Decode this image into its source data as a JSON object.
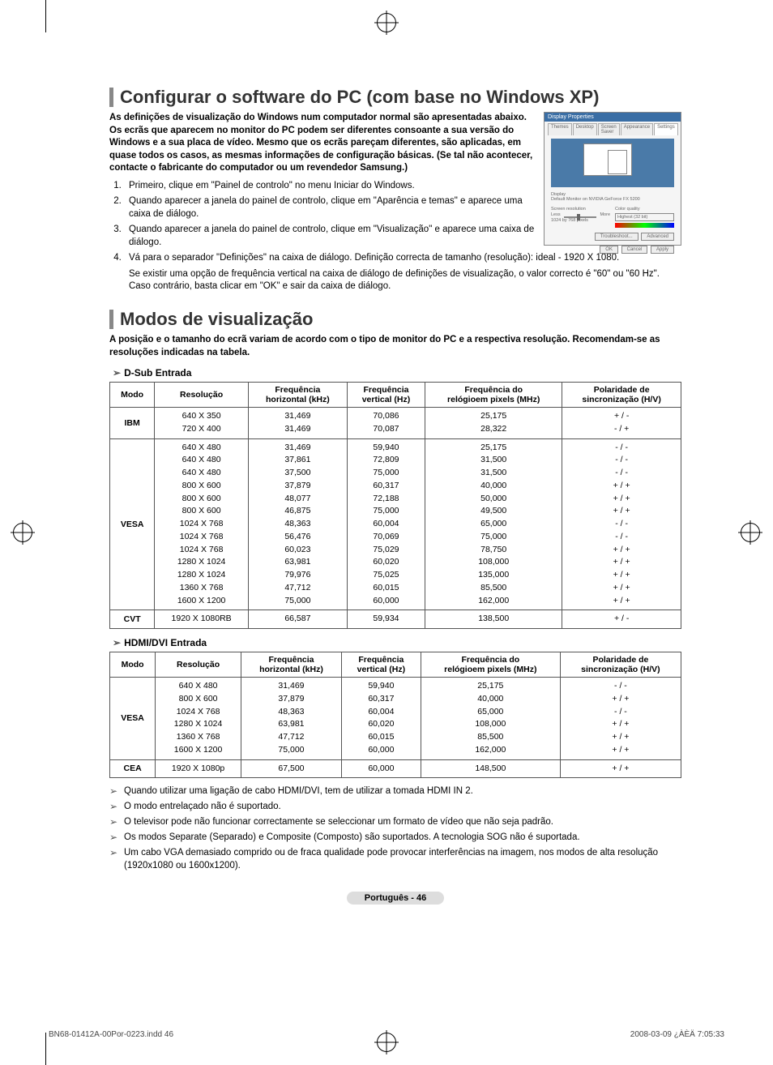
{
  "crop_marks": true,
  "section1": {
    "title": "Configurar o software do PC (com base no Windows XP)",
    "intro": "As definições de visualização do Windows num computador normal são apresentadas abaixo. Os ecrãs que aparecem no monitor do PC podem ser diferentes consoante a sua versão do Windows e a sua placa de vídeo. Mesmo que os ecrãs pareçam diferentes, são aplicadas, em quase todos os casos, as mesmas informações de configuração básicas. (Se tal não acontecer, contacte o fabricante do computador ou um revendedor Samsung.)",
    "steps": [
      "Primeiro, clique em \"Painel de controlo\" no menu Iniciar do Windows.",
      "Quando aparecer a janela do painel de controlo, clique em \"Aparência e temas\" e aparece uma caixa de diálogo.",
      "Quando aparecer a janela do painel de controlo, clique em \"Visualização\" e aparece uma caixa de diálogo.",
      "Vá para o separador \"Definições\" na caixa de diálogo. Definição correcta de tamanho (resolução): ideal - 1920 X 1080."
    ],
    "sub_note": "Se existir uma opção de frequência vertical na caixa de diálogo de definições de visualização, o valor correcto é \"60\" ou \"60 Hz\". Caso contrário, basta clicar em \"OK\" e sair da caixa de diálogo.",
    "dialog_title": "Display Properties",
    "dialog_tabs": [
      "Themes",
      "Desktop",
      "Screen Saver",
      "Appearance",
      "Settings"
    ],
    "dialog_left_label": "Screen resolution",
    "dialog_right_label": "Color quality",
    "dialog_res": "1024 by 768 pixels",
    "dialog_btns": [
      "Troubleshoot...",
      "Advanced"
    ],
    "dialog_ok": [
      "OK",
      "Cancel",
      "Apply"
    ]
  },
  "section2": {
    "title": "Modos de visualização",
    "intro": "A posição e o tamanho do ecrã variam de acordo com o tipo de monitor do PC e a respectiva resolução. Recomendam-se as resoluções indicadas na tabela."
  },
  "tableA": {
    "heading": "D-Sub Entrada",
    "cols": [
      "Modo",
      "Resolução",
      "Frequência horizontal (kHz)",
      "Frequência vertical (Hz)",
      "Frequência do relógioem pixels (MHz)",
      "Polaridade de sincronização (H/V)"
    ],
    "rows": [
      {
        "mode": "IBM",
        "res": [
          "640 X 350",
          "720 X 400"
        ],
        "h": [
          "31,469",
          "31,469"
        ],
        "v": [
          "70,086",
          "70,087"
        ],
        "p": [
          "25,175",
          "28,322"
        ],
        "s": [
          "+ / -",
          "- / +"
        ]
      },
      {
        "mode": "VESA",
        "res": [
          "640 X 480",
          "640 X 480",
          "640 X 480",
          "800 X 600",
          "800 X 600",
          "800 X 600",
          "1024 X 768",
          "1024 X 768",
          "1024 X 768",
          "1280 X 1024",
          "1280 X 1024",
          "1360 X 768",
          "1600 X 1200"
        ],
        "h": [
          "31,469",
          "37,861",
          "37,500",
          "37,879",
          "48,077",
          "46,875",
          "48,363",
          "56,476",
          "60,023",
          "63,981",
          "79,976",
          "47,712",
          "75,000"
        ],
        "v": [
          "59,940",
          "72,809",
          "75,000",
          "60,317",
          "72,188",
          "75,000",
          "60,004",
          "70,069",
          "75,029",
          "60,020",
          "75,025",
          "60,015",
          "60,000"
        ],
        "p": [
          "25,175",
          "31,500",
          "31,500",
          "40,000",
          "50,000",
          "49,500",
          "65,000",
          "75,000",
          "78,750",
          "108,000",
          "135,000",
          "85,500",
          "162,000"
        ],
        "s": [
          "- / -",
          "- / -",
          "- / -",
          "+ / +",
          "+ / +",
          "+ / +",
          "- / -",
          "- / -",
          "+ / +",
          "+ / +",
          "+ / +",
          "+ / +",
          "+ / +"
        ]
      },
      {
        "mode": "CVT",
        "res": [
          "1920 X 1080RB"
        ],
        "h": [
          "66,587"
        ],
        "v": [
          "59,934"
        ],
        "p": [
          "138,500"
        ],
        "s": [
          "+ / -"
        ]
      }
    ]
  },
  "tableB": {
    "heading": "HDMI/DVI Entrada",
    "cols": [
      "Modo",
      "Resolução",
      "Frequência horizontal (kHz)",
      "Frequência vertical (Hz)",
      "Frequência do relógioem pixels (MHz)",
      "Polaridade de sincronização (H/V)"
    ],
    "rows": [
      {
        "mode": "VESA",
        "res": [
          "640 X 480",
          "800 X 600",
          "1024 X 768",
          "1280 X 1024",
          "1360 X 768",
          "1600 X 1200"
        ],
        "h": [
          "31,469",
          "37,879",
          "48,363",
          "63,981",
          "47,712",
          "75,000"
        ],
        "v": [
          "59,940",
          "60,317",
          "60,004",
          "60,020",
          "60,015",
          "60,000"
        ],
        "p": [
          "25,175",
          "40,000",
          "65,000",
          "108,000",
          "85,500",
          "162,000"
        ],
        "s": [
          "- / -",
          "+ / +",
          "- / -",
          "+ / +",
          "+ / +",
          "+ / +"
        ]
      },
      {
        "mode": "CEA",
        "res": [
          "1920 X 1080p"
        ],
        "h": [
          "67,500"
        ],
        "v": [
          "60,000"
        ],
        "p": [
          "148,500"
        ],
        "s": [
          "+ / +"
        ]
      }
    ]
  },
  "notes": [
    "Quando utilizar uma ligação de cabo HDMI/DVI, tem de utilizar a tomada HDMI IN 2.",
    "O modo entrelaçado não é suportado.",
    "O televisor pode não funcionar correctamente se seleccionar um formato de vídeo que não seja padrão.",
    "Os modos Separate (Separado) e Composite (Composto) são suportados. A tecnologia SOG não é suportada.",
    "Um cabo VGA demasiado comprido ou de fraca qualidade pode provocar interferências na imagem, nos modos de alta resolução (1920x1080 ou 1600x1200)."
  ],
  "page_pill": "Português - 46",
  "footer_left": "BN68-01412A-00Por-0223.indd   46",
  "footer_right": "2008-03-09   ¿ÀÈÄ 7:05:33",
  "colors": {
    "heading_bar": "#888888",
    "border": "#555555",
    "pill_bg": "#dddddd"
  }
}
